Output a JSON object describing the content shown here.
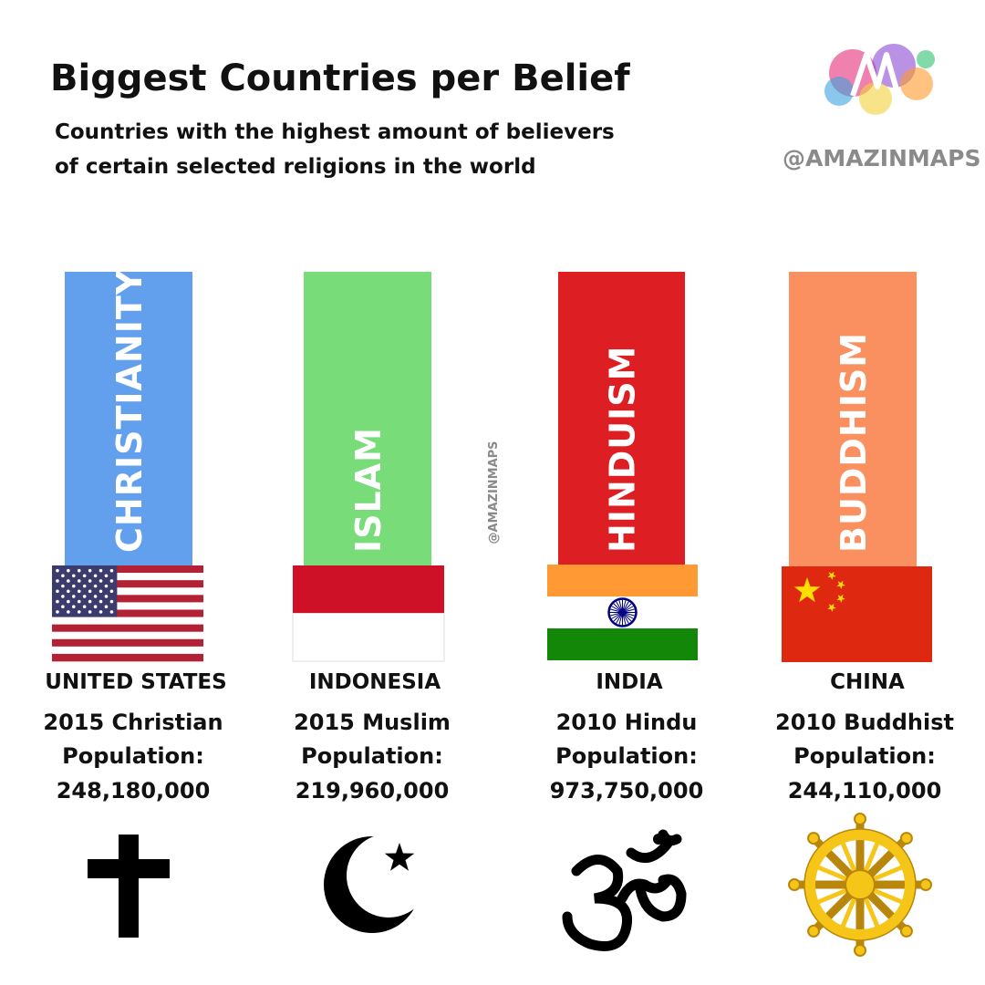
{
  "header": {
    "title": "Biggest Countries per Belief",
    "subtitle": [
      "Countries with the highest amount of believers",
      "of certain selected religions in the world"
    ],
    "brand": "@AMAZINMAPS"
  },
  "watermark": "@AMAZINMAPS",
  "columns": [
    {
      "religion": "CHRISTIANITY",
      "country": "UNITED STATES",
      "caption": "2015 Christian",
      "label": "Population:",
      "population": "248,180,000"
    },
    {
      "religion": "ISLAM",
      "country": "INDONESIA",
      "caption": "2015 Muslim",
      "label": "Population:",
      "population": "219,960,000"
    },
    {
      "religion": "HINDUISM",
      "country": "INDIA",
      "caption": "2010 Hindu",
      "label": "Population:",
      "population": "973,750,000"
    },
    {
      "religion": "BUDDHISM",
      "country": "CHINA",
      "caption": "2010 Buddhist",
      "label": "Population:",
      "population": "244,110,000"
    }
  ]
}
